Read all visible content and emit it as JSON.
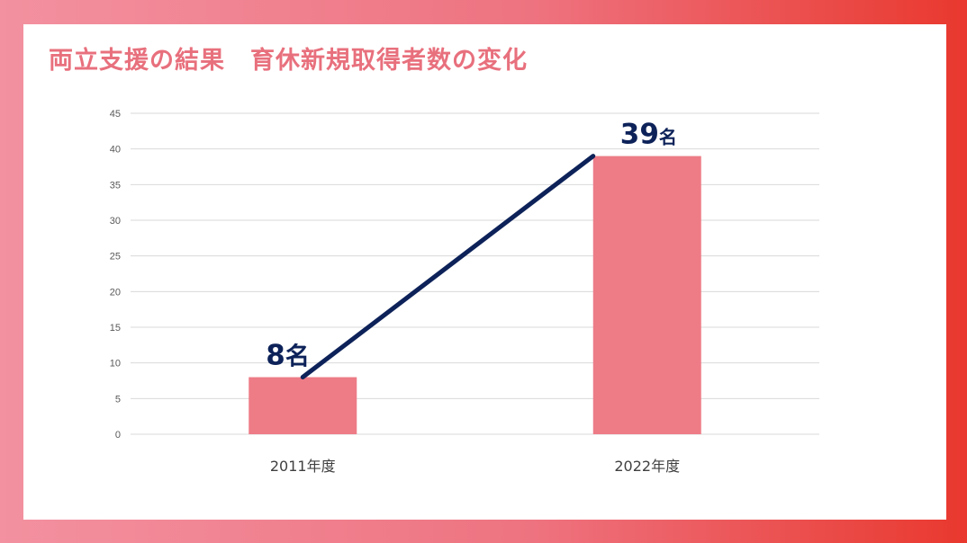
{
  "title": "両立支援の結果　育休新規取得者数の変化",
  "colors": {
    "bar": "#ed7c87",
    "line": "#0d2259",
    "title": "#e8707d"
  },
  "chart_data": {
    "type": "bar",
    "categories": [
      "2011年度",
      "2022年度"
    ],
    "values": [
      8,
      39
    ],
    "ylim": [
      0,
      45
    ],
    "yticks": [
      "0",
      "5",
      "10",
      "15",
      "20",
      "25",
      "30",
      "35",
      "40",
      "45"
    ],
    "grid": true,
    "data_labels": [
      {
        "number": "8",
        "unit": "名"
      },
      {
        "number": "39",
        "unit": "名"
      }
    ],
    "trend_line": true
  }
}
